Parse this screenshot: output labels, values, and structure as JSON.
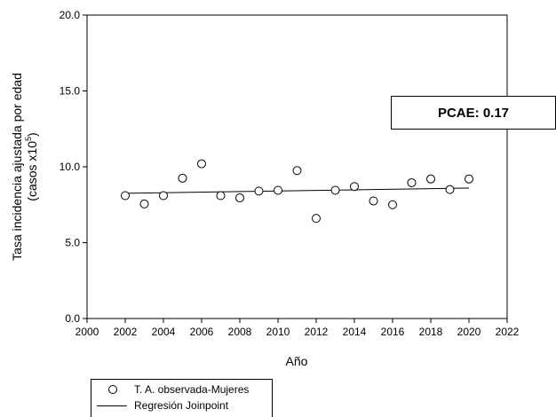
{
  "chart_data": {
    "type": "scatter",
    "xlabel": "Año",
    "ylabel_line1": "Tasa incidencia ajustada por edad",
    "ylabel_line2": "(casos x10",
    "ylabel_sup": "5",
    "ylabel_close": ")",
    "xlim": [
      2000,
      2022
    ],
    "ylim": [
      0.0,
      20.0
    ],
    "xticks": [
      2000,
      2002,
      2004,
      2006,
      2008,
      2010,
      2012,
      2014,
      2016,
      2018,
      2020,
      2022
    ],
    "yticks": [
      "0.0",
      "5.0",
      "10.0",
      "15.0",
      "20.0"
    ],
    "series": [
      {
        "name": "T. A. observada-Mujeres",
        "kind": "scatter",
        "x": [
          2002,
          2003,
          2004,
          2005,
          2006,
          2007,
          2008,
          2009,
          2010,
          2011,
          2012,
          2013,
          2014,
          2015,
          2016,
          2017,
          2018,
          2019,
          2020
        ],
        "y": [
          8.1,
          7.55,
          8.1,
          9.25,
          10.2,
          8.1,
          7.95,
          8.4,
          8.45,
          9.75,
          6.6,
          8.45,
          8.7,
          7.75,
          7.5,
          8.95,
          9.2,
          8.5,
          9.2
        ]
      },
      {
        "name": "Regresión Joinpoint",
        "kind": "line",
        "x": [
          2002,
          2020
        ],
        "y": [
          8.25,
          8.6
        ]
      }
    ],
    "grid": false,
    "legend_position": "bottom-left"
  },
  "annotation": {
    "label": "PCAE:",
    "value": "0.17"
  }
}
